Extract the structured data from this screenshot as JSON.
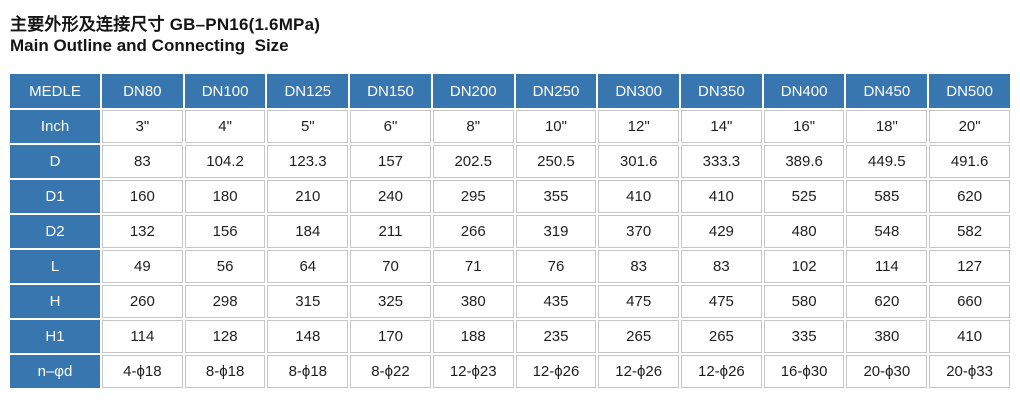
{
  "title": {
    "line1_zh": "主要外形及连接尺寸 GB–PN16(1.6MPa)",
    "line2_en": "Main Outline and Connecting  Size"
  },
  "colors": {
    "header_blue": "#3776ae",
    "cell_border": "#c6c6c6",
    "header_text": "#ffffff",
    "data_text": "#1f1f1f",
    "title_text": "#141414"
  },
  "table": {
    "corner_label": "MEDLE",
    "columns": [
      "DN80",
      "DN100",
      "DN125",
      "DN150",
      "DN200",
      "DN250",
      "DN300",
      "DN350",
      "DN400",
      "DN450",
      "DN500"
    ],
    "rows": [
      {
        "label": "Inch",
        "values": [
          "3\"",
          "4\"",
          "5\"",
          "6\"",
          "8\"",
          "10\"",
          "12\"",
          "14\"",
          "16\"",
          "18\"",
          "20\""
        ]
      },
      {
        "label": "D",
        "values": [
          "83",
          "104.2",
          "123.3",
          "157",
          "202.5",
          "250.5",
          "301.6",
          "333.3",
          "389.6",
          "449.5",
          "491.6"
        ]
      },
      {
        "label": "D1",
        "values": [
          "160",
          "180",
          "210",
          "240",
          "295",
          "355",
          "410",
          "410",
          "525",
          "585",
          "620"
        ]
      },
      {
        "label": "D2",
        "values": [
          "132",
          "156",
          "184",
          "211",
          "266",
          "319",
          "370",
          "429",
          "480",
          "548",
          "582"
        ]
      },
      {
        "label": "L",
        "values": [
          "49",
          "56",
          "64",
          "70",
          "71",
          "76",
          "83",
          "83",
          "102",
          "114",
          "127"
        ]
      },
      {
        "label": "H",
        "values": [
          "260",
          "298",
          "315",
          "325",
          "380",
          "435",
          "475",
          "475",
          "580",
          "620",
          "660"
        ]
      },
      {
        "label": "H1",
        "values": [
          "114",
          "128",
          "148",
          "170",
          "188",
          "235",
          "265",
          "265",
          "335",
          "380",
          "410"
        ]
      },
      {
        "label": "n–φd",
        "values": [
          "4-ϕ18",
          "8-ϕ18",
          "8-ϕ18",
          "8-ϕ22",
          "12-ϕ23",
          "12-ϕ26",
          "12-ϕ26",
          "12-ϕ26",
          "16-ϕ30",
          "20-ϕ30",
          "20-ϕ33"
        ]
      }
    ]
  }
}
